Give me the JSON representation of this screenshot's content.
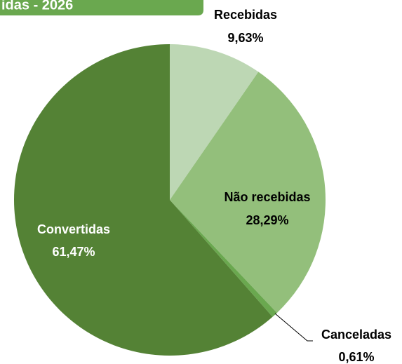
{
  "chart_data": {
    "type": "pie",
    "title": "idas - 2026",
    "categories": [
      "Recebidas",
      "Não recebidas",
      "Canceladas",
      "Convertidas"
    ],
    "values": [
      9.63,
      28.29,
      0.61,
      61.47
    ],
    "value_labels": [
      "9,63%",
      "28,29%",
      "0,61%",
      "61,47%"
    ],
    "colors": [
      "#bdd7b4",
      "#93bf7b",
      "#6aa84f",
      "#548235"
    ]
  }
}
